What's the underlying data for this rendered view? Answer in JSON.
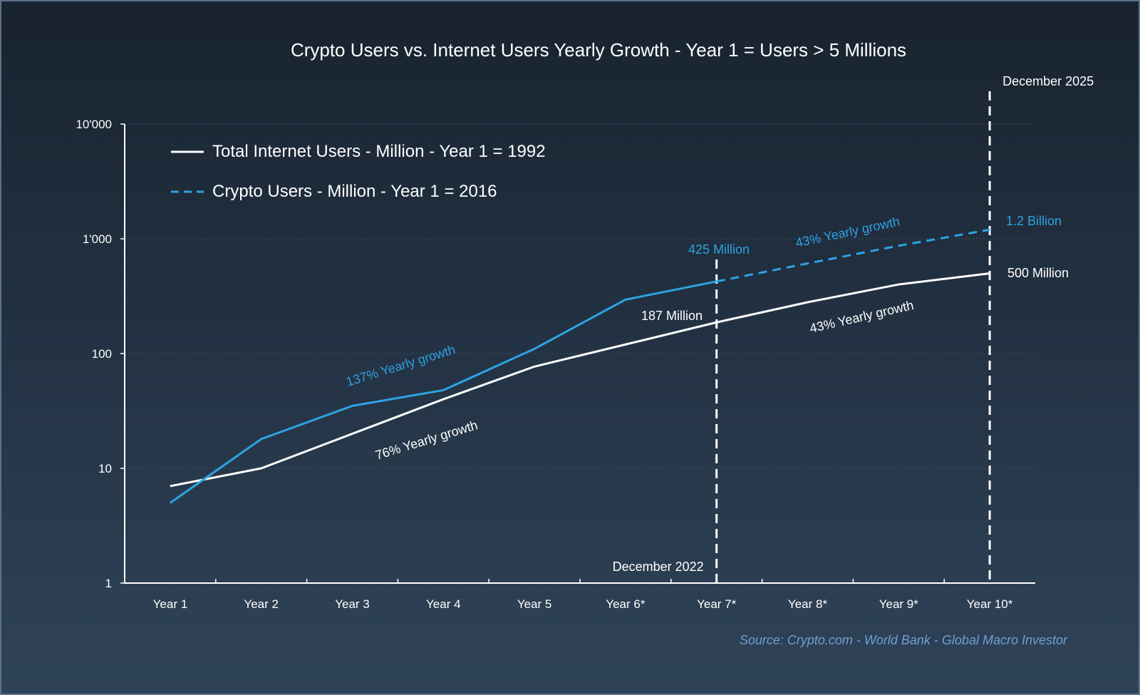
{
  "chart_data": {
    "type": "line",
    "title": "Crypto Users vs. Internet Users Yearly Growth - Year 1 = Users > 5 Millions",
    "categories": [
      "Year 1",
      "Year 2",
      "Year 3",
      "Year 4",
      "Year 5",
      "Year 6*",
      "Year 7*",
      "Year 8*",
      "Year 9*",
      "Year 10*"
    ],
    "yscale": "log",
    "ylim": [
      1,
      10000
    ],
    "yticks": [
      1,
      10,
      100,
      1000,
      10000
    ],
    "ytick_labels": [
      "1",
      "10",
      "100",
      "1'000",
      "10'000"
    ],
    "grid": true,
    "legend_position": "top-left",
    "series": [
      {
        "name": "Total Internet Users - Million - Year 1 = 1992",
        "color": "#ffffff",
        "style": "solid",
        "values": [
          7,
          10,
          20,
          40,
          77,
          120,
          187,
          280,
          400,
          500
        ]
      },
      {
        "name": "Crypto Users - Million - Year 1 = 2016",
        "color": "#2ea3e3",
        "style": "solid-then-dashed",
        "dashed_from_index": 6,
        "values": [
          5,
          18,
          35,
          48,
          110,
          295,
          425,
          610,
          870,
          1200
        ]
      }
    ],
    "markers": [
      {
        "category_index": 6,
        "label": "December 2022",
        "style": "dashed",
        "color": "#ffffff"
      },
      {
        "category_index": 9,
        "label": "December 2025",
        "style": "dashed",
        "color": "#ffffff"
      }
    ],
    "annotations": [
      {
        "text": "425 Million",
        "color": "#2ea3e3"
      },
      {
        "text": "187 Million",
        "color": "#ffffff"
      },
      {
        "text": "1.2 Billion",
        "color": "#2ea3e3"
      },
      {
        "text": "500 Million",
        "color": "#ffffff"
      },
      {
        "text": "137% Yearly growth",
        "color": "#2ea3e3"
      },
      {
        "text": "76% Yearly growth",
        "color": "#ffffff"
      },
      {
        "text": "43% Yearly growth",
        "color": "#2ea3e3"
      },
      {
        "text": "43% Yearly growth",
        "color": "#ffffff"
      }
    ],
    "source": "Source: Crypto.com - World Bank - Global Macro Investor"
  }
}
